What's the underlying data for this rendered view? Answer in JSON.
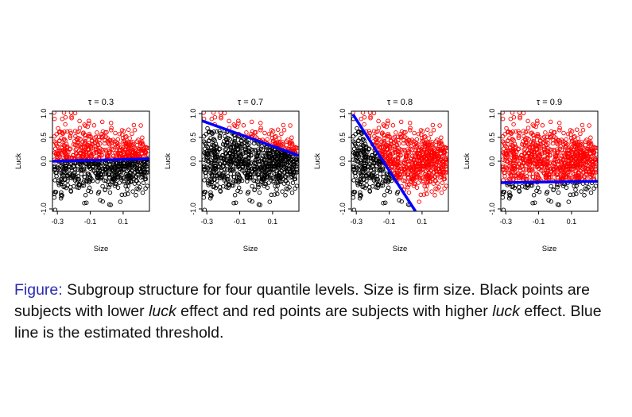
{
  "caption": {
    "lead": "Figure:",
    "text_1": " Subgroup structure for four quantile levels. Size is firm size. Black points are subjects with lower ",
    "italic_1": "luck",
    "text_2": " effect and red points are subjects with higher ",
    "italic_2": "luck",
    "text_3": " effect. Blue line is the estimated threshold."
  },
  "colors": {
    "lower": "#000000",
    "higher": "#ff0000",
    "threshold": "#0000ff"
  },
  "chart_data": [
    {
      "type": "scatter",
      "title": "τ = 0.3",
      "xlabel": "Size",
      "ylabel": "Luck",
      "xlim": [
        -0.33,
        0.26
      ],
      "ylim": [
        -1.05,
        1.05
      ],
      "xticks": [
        "-0.3",
        "-0.1",
        "0.1"
      ],
      "yticks": [
        "-1.0",
        "0.0",
        "0.5",
        "1.0"
      ],
      "grid": false,
      "threshold": {
        "x": [
          -0.33,
          0.26
        ],
        "y": [
          0.0,
          0.05
        ]
      }
    },
    {
      "type": "scatter",
      "title": "τ = 0.7",
      "xlabel": "Size",
      "ylabel": "Luck",
      "xlim": [
        -0.33,
        0.26
      ],
      "ylim": [
        -1.05,
        1.05
      ],
      "xticks": [
        "-0.3",
        "-0.1",
        "0.1"
      ],
      "yticks": [
        "-1.0",
        "0.0",
        "0.5",
        "1.0"
      ],
      "grid": false,
      "threshold": {
        "x": [
          -0.33,
          0.26
        ],
        "y": [
          0.85,
          0.12
        ]
      }
    },
    {
      "type": "scatter",
      "title": "τ = 0.8",
      "xlabel": "Size",
      "ylabel": "Luck",
      "xlim": [
        -0.33,
        0.26
      ],
      "ylim": [
        -1.05,
        1.05
      ],
      "xticks": [
        "-0.3",
        "-0.1",
        "0.1"
      ],
      "yticks": [
        "-1.0",
        "0.0",
        "0.5",
        "1.0"
      ],
      "grid": false,
      "threshold": {
        "x": [
          -0.32,
          0.06
        ],
        "y": [
          0.98,
          -1.05
        ]
      }
    },
    {
      "type": "scatter",
      "title": "τ = 0.9",
      "xlabel": "Size",
      "ylabel": "Luck",
      "xlim": [
        -0.33,
        0.26
      ],
      "ylim": [
        -1.05,
        1.05
      ],
      "xticks": [
        "-0.3",
        "-0.1",
        "0.1"
      ],
      "yticks": [
        "-1.0",
        "0.0",
        "0.5",
        "1.0"
      ],
      "grid": false,
      "threshold": {
        "x": [
          -0.33,
          0.26
        ],
        "y": [
          -0.45,
          -0.42
        ]
      }
    }
  ]
}
